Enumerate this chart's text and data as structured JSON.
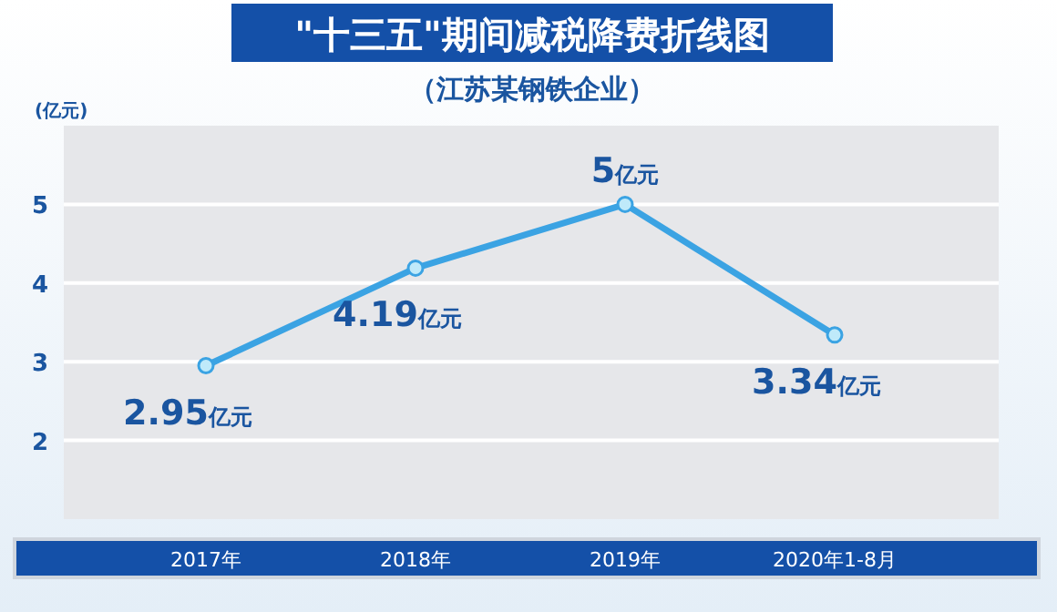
{
  "chart_data": {
    "type": "line",
    "title": "\"十三五\"期间减税降费折线图",
    "subtitle": "（江苏某钢铁企业）",
    "ylabel": "(亿元)",
    "categories": [
      "2017年",
      "2018年",
      "2019年",
      "2020年1-8月"
    ],
    "series": [
      {
        "color": "#3ba3e3",
        "values": [
          2.95,
          4.19,
          5,
          3.34
        ],
        "value_labels": [
          "2.95亿元",
          "4.19亿元",
          "5亿元",
          "3.34亿元"
        ]
      }
    ],
    "ylim": [
      1,
      6
    ],
    "yticks": [
      2,
      3,
      4,
      5
    ],
    "grid": "y",
    "marker": "circle"
  }
}
